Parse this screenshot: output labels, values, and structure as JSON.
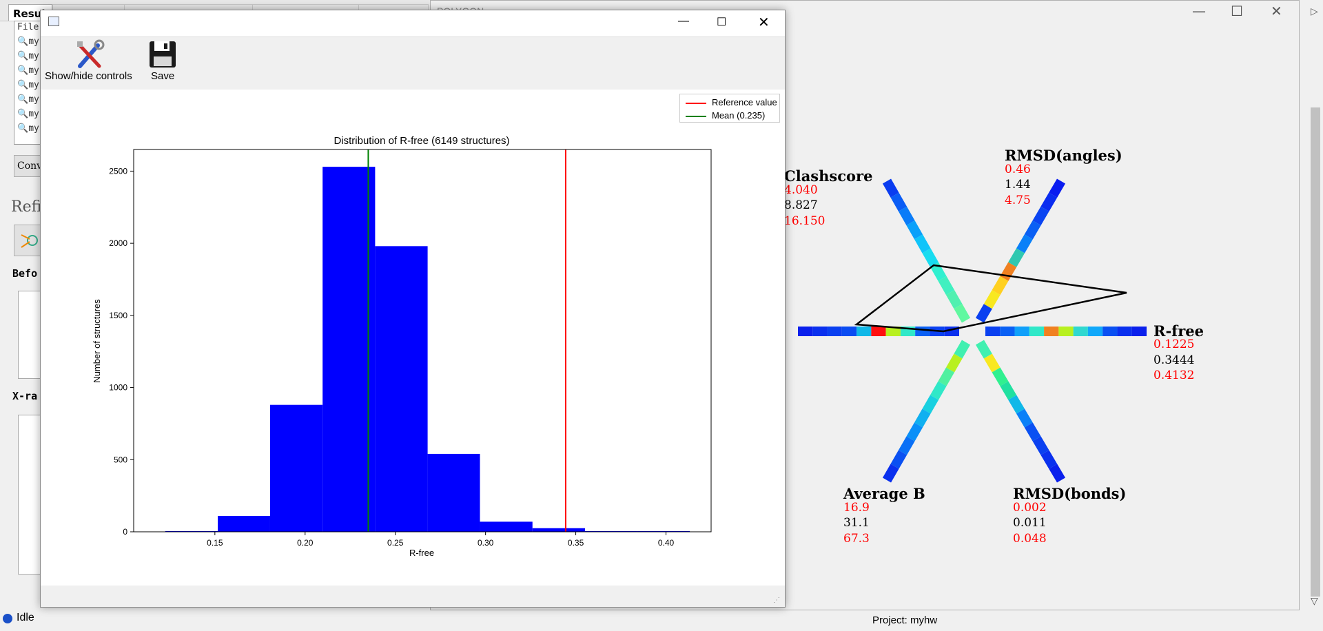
{
  "background_app": {
    "tab_active": "Resul",
    "file_label": "File",
    "file_rows": [
      "my",
      "my",
      "my",
      "my",
      "my",
      "my",
      "my"
    ],
    "convert_button": "Conv",
    "refine_heading": "Refi",
    "before_heading": "Befo",
    "xray_heading": "X-ra",
    "status_text": "Idle",
    "project_label": "Project: myhw"
  },
  "polygon_window": {
    "title": "POLYGON",
    "axes": [
      {
        "name": "Clashscore",
        "low": "4.040",
        "value": "8.827",
        "high": "16.150"
      },
      {
        "name": "RMSD(angles)",
        "low": "0.46",
        "value": "1.44",
        "high": "4.75"
      },
      {
        "name": "R-free",
        "low": "0.1225",
        "value": "0.3444",
        "high": "0.4132"
      },
      {
        "name": "RMSD(bonds)",
        "low": "0.002",
        "value": "0.011",
        "high": "0.048"
      },
      {
        "name": "Average B",
        "low": "16.9",
        "value": "31.1",
        "high": "67.3"
      }
    ]
  },
  "histogram_window": {
    "toolbar": {
      "show_hide_label": "Show/hide controls",
      "save_label": "Save"
    },
    "legend": {
      "reference_label": "Reference value",
      "mean_label": "Mean (0.235)"
    },
    "colors": {
      "bars": "#0000ff",
      "reference": "#ff0000",
      "mean": "#008000"
    }
  },
  "chart_data": {
    "type": "bar",
    "title": "Distribution of R-free (6149 structures)",
    "xlabel": "R-free",
    "ylabel": "Number of structures",
    "xlim": [
      0.105,
      0.425
    ],
    "ylim": [
      0,
      2650
    ],
    "x_ticks": [
      "0.15",
      "0.20",
      "0.25",
      "0.30",
      "0.35",
      "0.40"
    ],
    "x_tick_values": [
      0.15,
      0.2,
      0.25,
      0.3,
      0.35,
      0.4
    ],
    "y_ticks": [
      "0",
      "500",
      "1000",
      "1500",
      "2000",
      "2500"
    ],
    "y_tick_values": [
      0,
      500,
      1000,
      1500,
      2000,
      2500
    ],
    "bins": [
      {
        "x0": 0.1225,
        "x1": 0.1516,
        "count": 5
      },
      {
        "x0": 0.1516,
        "x1": 0.1806,
        "count": 110
      },
      {
        "x0": 0.1806,
        "x1": 0.2097,
        "count": 880
      },
      {
        "x0": 0.2097,
        "x1": 0.2388,
        "count": 2530
      },
      {
        "x0": 0.2388,
        "x1": 0.2679,
        "count": 1980
      },
      {
        "x0": 0.2679,
        "x1": 0.2969,
        "count": 540
      },
      {
        "x0": 0.2969,
        "x1": 0.326,
        "count": 70
      },
      {
        "x0": 0.326,
        "x1": 0.3551,
        "count": 25
      },
      {
        "x0": 0.3551,
        "x1": 0.3841,
        "count": 5
      },
      {
        "x0": 0.3841,
        "x1": 0.4132,
        "count": 5
      }
    ],
    "reference_value": 0.3444,
    "mean_value": 0.235,
    "legend": [
      "Reference value",
      "Mean (0.235)"
    ],
    "legend_position": "top-right",
    "grid": false
  }
}
